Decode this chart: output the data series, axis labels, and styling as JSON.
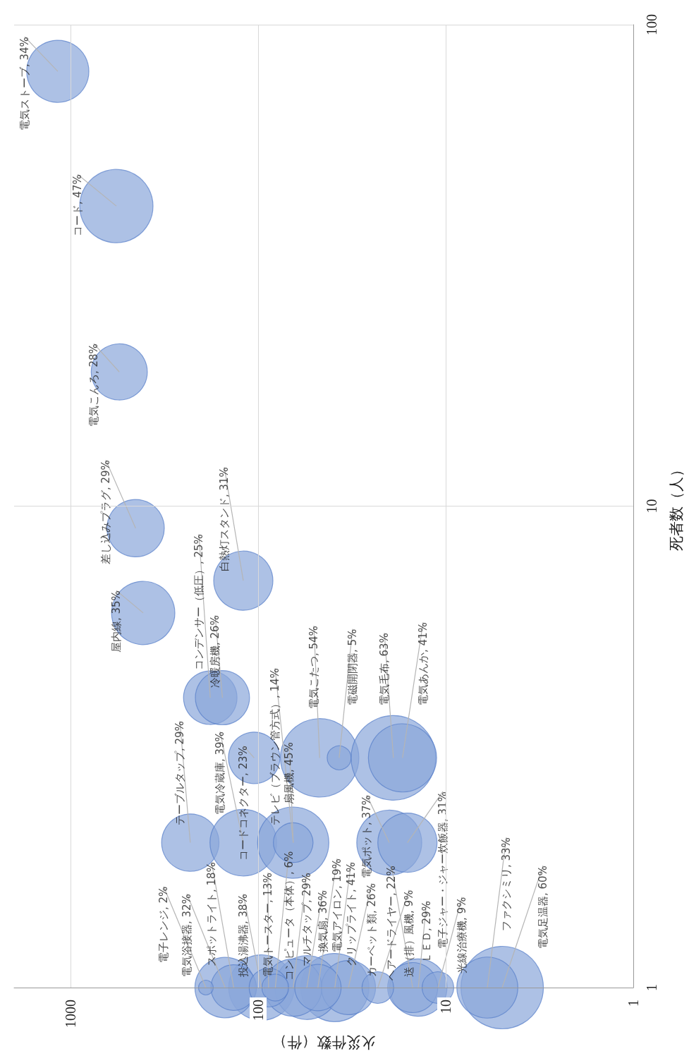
{
  "chart_data": {
    "type": "bubble",
    "xlabel": "火災件数（件）",
    "ylabel": "死者数（人）",
    "color": "#8aa6da",
    "log": "xy",
    "grid": true,
    "xlim": [
      2000,
      1
    ],
    "xticks": [
      1000,
      100,
      10,
      1
    ],
    "ylim": [
      1,
      100
    ],
    "yticks": [
      1,
      10,
      100
    ],
    "x": [
      1170,
      570,
      550,
      450,
      410,
      120,
      180,
      155,
      230,
      120,
      105,
      65,
      65,
      47,
      37,
      19,
      17,
      20,
      16,
      5,
      6,
      39,
      96,
      55,
      150,
      65,
      14,
      33,
      15,
      48,
      135,
      88,
      23,
      11,
      81,
      190
    ],
    "values": [
      80,
      42,
      19,
      9,
      6,
      7,
      4,
      4,
      2,
      2,
      3,
      2,
      2,
      3,
      3,
      3,
      3,
      2,
      2,
      1,
      1,
      1,
      1,
      1,
      1,
      1,
      1,
      1,
      1,
      1,
      1,
      1,
      1,
      1,
      1,
      1
    ],
    "sizes": [
      0.54,
      0.75,
      0.44,
      0.46,
      0.56,
      0.49,
      0.4,
      0.41,
      0.46,
      0.62,
      0.37,
      0.71,
      0.22,
      0.86,
      0.08,
      1,
      0.65,
      0.59,
      0.49,
      0.95,
      0.52,
      0.65,
      0.6,
      0.57,
      0.51,
      0.46,
      0.46,
      0.41,
      0.35,
      0.3,
      0.29,
      0.21,
      0.14,
      0.14,
      0.1,
      0.03
    ],
    "annotations": [
      {
        "text": "電気ストーブ, 34%",
        "x": 1170,
        "y": 80
      },
      {
        "text": "コード, 47%",
        "x": 570,
        "y": 42
      },
      {
        "text": "電気こんろ, 28%",
        "x": 550,
        "y": 19
      },
      {
        "text": "差し込みプラグ, 29%",
        "x": 450,
        "y": 9
      },
      {
        "text": "屋内線, 35%",
        "x": 410,
        "y": 6
      },
      {
        "text": "白熱灯スタンド, 31%",
        "x": 120,
        "y": 7
      },
      {
        "text": "コンデンサー（低圧）, 25%",
        "x": 180,
        "y": 4
      },
      {
        "text": "冷暖房機, 26%",
        "x": 155,
        "y": 4
      },
      {
        "text": "テーブルタップ, 29%",
        "x": 230,
        "y": 2
      },
      {
        "text": "電気冷蔵庫, 39%",
        "x": 120,
        "y": 2
      },
      {
        "text": "コードコネクター, 23%",
        "x": 105,
        "y": 3
      },
      {
        "text": "扇風機, 45%",
        "x": 65,
        "y": 2
      },
      {
        "text": "テレビ（ブラウン管方式）, 14%",
        "x": 65,
        "y": 2
      },
      {
        "text": "電気こたつ, 54%",
        "x": 47,
        "y": 3
      },
      {
        "text": "電磁開閉器, 5%",
        "x": 37,
        "y": 3
      },
      {
        "text": "電気毛布, 63%",
        "x": 19,
        "y": 3
      },
      {
        "text": "電気あんか, 41%",
        "x": 17,
        "y": 3
      },
      {
        "text": "電気ポット, 37%",
        "x": 20,
        "y": 2
      },
      {
        "text": "電子ジャー・ジャー炊飯器, 31%",
        "x": 16,
        "y": 2
      },
      {
        "text": "電気足温器, 60%",
        "x": 5,
        "y": 1
      },
      {
        "text": "ファクシミリ, 33%",
        "x": 6,
        "y": 1
      },
      {
        "text": "クリップライト, 41%",
        "x": 39,
        "y": 1
      },
      {
        "text": "投込湯沸器, 38%",
        "x": 96,
        "y": 1
      },
      {
        "text": "換気扇, 36%",
        "x": 55,
        "y": 1
      },
      {
        "text": "電気浴接器, 32%",
        "x": 150,
        "y": 1
      },
      {
        "text": "マルチタップ, 29%",
        "x": 65,
        "y": 1
      },
      {
        "text": "ＬＥＤ, 29%",
        "x": 14,
        "y": 1
      },
      {
        "text": "カーペット類, 26%",
        "x": 33,
        "y": 1
      },
      {
        "text": "ヘアードライヤー, 22%",
        "x": 15,
        "y": 1
      },
      {
        "text": "電気アイロン, 19%",
        "x": 48,
        "y": 1
      },
      {
        "text": "スポットライト, 18%",
        "x": 135,
        "y": 1
      },
      {
        "text": "電気トースター, 13%",
        "x": 88,
        "y": 1
      },
      {
        "text": "送（排）風機, 9%",
        "x": 23,
        "y": 1
      },
      {
        "text": "光線治療機, 9%",
        "x": 11,
        "y": 1
      },
      {
        "text": "コンピュータ（本体）, 6%",
        "x": 81,
        "y": 1
      },
      {
        "text": "電子レンジ, 2%",
        "x": 190,
        "y": 1
      }
    ]
  }
}
